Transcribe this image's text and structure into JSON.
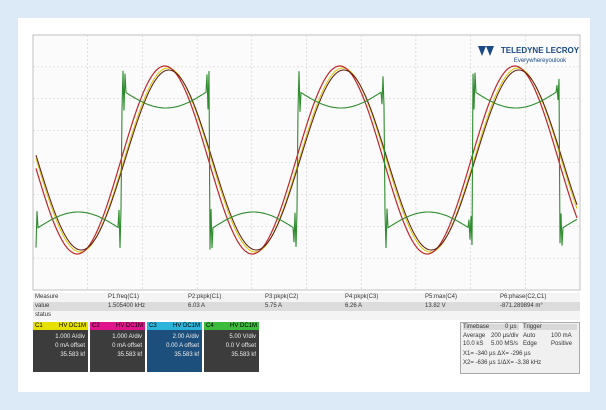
{
  "logo": {
    "brand": "TELEDYNE LECROY",
    "tagline": "Everywhereyoulook"
  },
  "measurements": {
    "header": [
      "Measure",
      "P1:freq(C1)",
      "P2:pkpk(C1)",
      "P3:pkpk(C2)",
      "P4:pkpk(C3)",
      "P5:max(C4)",
      "P6:phase(C2,C1)"
    ],
    "value": [
      "value",
      "1.505400 kHz",
      "6.03 A",
      "5.75 A",
      "6.26 A",
      "13.82 V",
      "-871.289894 m°"
    ],
    "status": [
      "status"
    ]
  },
  "channels": [
    {
      "label": "C1",
      "coupling": "HV DC1M",
      "scale": "1.000 A/div",
      "offset": "0 mA offset",
      "samples": "35.583 kf",
      "color": "#e6e000"
    },
    {
      "label": "C2",
      "coupling": "HV DC1M",
      "scale": "1.000 A/div",
      "offset": "0 mA offset",
      "samples": "35.583 kf",
      "color": "#e0158c"
    },
    {
      "label": "C3",
      "coupling": "HV DC1M",
      "scale": "2.00 A/div",
      "offset": "0.00 A offset",
      "samples": "35.583 kf",
      "color": "#2bb3d9"
    },
    {
      "label": "C4",
      "coupling": "HV DC1M",
      "scale": "5.00 V/div",
      "offset": "0.0 V offset",
      "samples": "35.583 kf",
      "color": "#3dbb3d"
    }
  ],
  "timebase": {
    "title": "Timebase",
    "delay": "0 µs",
    "trigger": "Trigger",
    "rows": [
      [
        "Average",
        "200 µs/div",
        "Auto",
        "100 mA"
      ],
      [
        "10.0 kS",
        "5.00 MS/s",
        "Edge",
        "Positive"
      ]
    ],
    "cursors": [
      "X1= -340 µs ΔX= -296 µs",
      "X2= -636 µs 1/ΔX= -3.38 kHz"
    ]
  }
}
